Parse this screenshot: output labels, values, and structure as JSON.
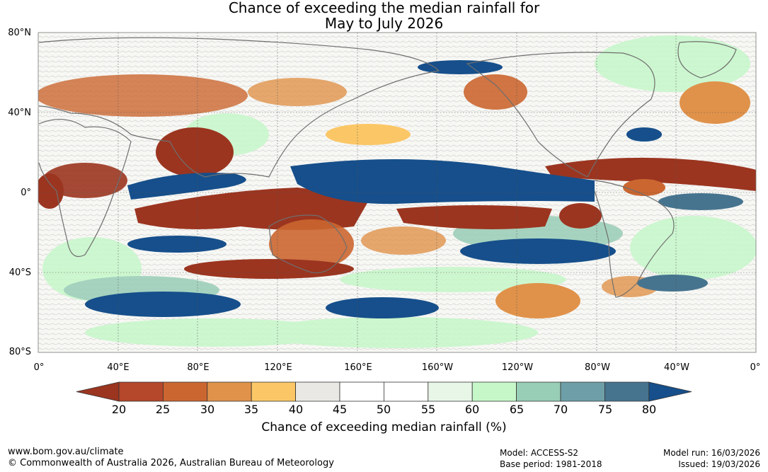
{
  "title": {
    "line1": "Chance of exceeding the median rainfall for",
    "line2": "May to July 2026"
  },
  "map": {
    "lat_labels": [
      "80°N",
      "40°N",
      "0°",
      "40°S",
      "80°S"
    ],
    "lon_labels": [
      "0°",
      "40°E",
      "80°E",
      "120°E",
      "160°E",
      "160°W",
      "120°W",
      "80°W",
      "40°W",
      "0°"
    ]
  },
  "colorbar": {
    "ticks": [
      "20",
      "25",
      "30",
      "35",
      "40",
      "45",
      "50",
      "55",
      "60",
      "65",
      "70",
      "75",
      "80"
    ],
    "colors": [
      "#9b3520",
      "#b5472a",
      "#cb6630",
      "#e0924a",
      "#fbc766",
      "#e9e8e4",
      "#ffffff",
      "#ffffff",
      "#e8f6e8",
      "#c6f7c9",
      "#98cdb6",
      "#6e9fa8",
      "#46748f",
      "#164f8b"
    ],
    "label": "Chance of exceeding median rainfall (%)"
  },
  "footer": {
    "url": "www.bom.gov.au/climate",
    "copyright": "© Commonwealth of Australia 2026, Australian Bureau of Meteorology",
    "model": "Model: ACCESS-S2",
    "base_period": "Base period: 1981-2018",
    "model_run": "Model run: 16/03/2026",
    "issued": "Issued: 19/03/2026"
  }
}
